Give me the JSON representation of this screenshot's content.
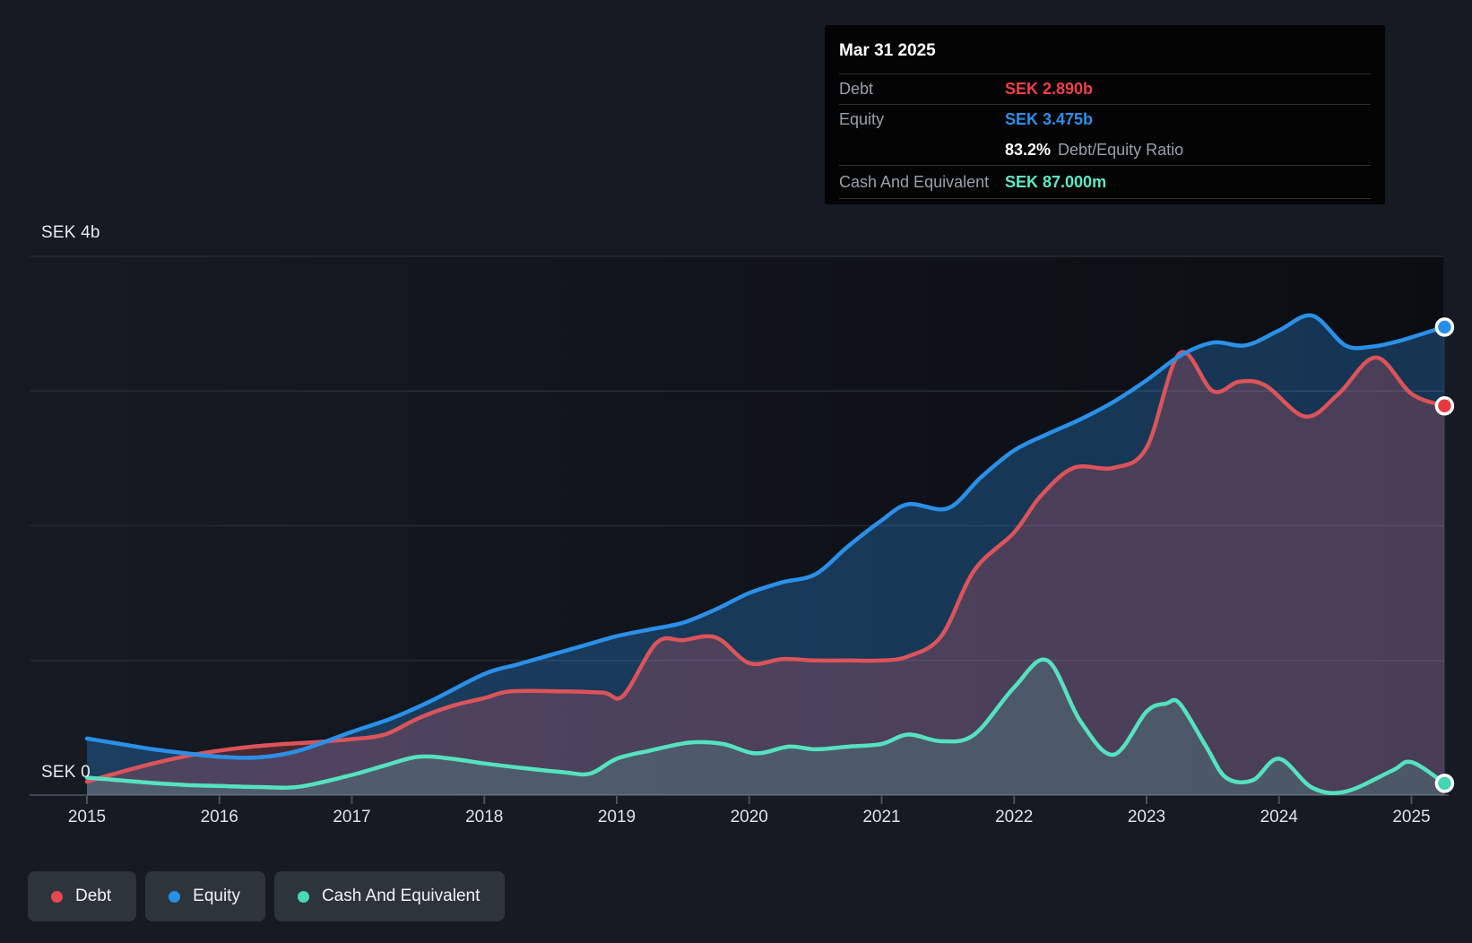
{
  "tooltip": {
    "date": "Mar 31 2025",
    "debt": {
      "label": "Debt",
      "value": "SEK 2.890b",
      "color": "#ef4046"
    },
    "equity": {
      "label": "Equity",
      "value": "SEK 3.475b",
      "color": "#2b90e9"
    },
    "ratio": {
      "value": "83.2%",
      "label": "Debt/Equity Ratio"
    },
    "cash": {
      "label": "Cash And Equivalent",
      "value": "SEK 87.000m",
      "color": "#5ee8c5"
    }
  },
  "y_axis": {
    "top_label": "SEK 4b",
    "bottom_label": "SEK 0"
  },
  "legend": [
    {
      "label": "Debt",
      "color": "#e8474c"
    },
    {
      "label": "Equity",
      "color": "#2590e8"
    },
    {
      "label": "Cash And Equivalent",
      "color": "#49d9b6"
    }
  ],
  "chart_data": {
    "type": "area",
    "x_ticks": [
      "2015",
      "2016",
      "2017",
      "2018",
      "2019",
      "2020",
      "2021",
      "2022",
      "2023",
      "2024",
      "2025"
    ],
    "xlim_years": [
      2015,
      2025.25
    ],
    "ylim_b": [
      0,
      4
    ],
    "grid_step_b": 1,
    "y_unit": "SEK billions",
    "legend_position": "bottom-left",
    "series": [
      {
        "name": "Debt",
        "color": "#dc545a",
        "fill": "rgba(228,88,100,0.26)",
        "marker_color": "#e8393f",
        "points": [
          [
            2015,
            0.1
          ],
          [
            2015.25,
            0.17
          ],
          [
            2015.5,
            0.235
          ],
          [
            2015.75,
            0.29
          ],
          [
            2016,
            0.33
          ],
          [
            2016.25,
            0.36
          ],
          [
            2016.5,
            0.38
          ],
          [
            2016.75,
            0.395
          ],
          [
            2017,
            0.415
          ],
          [
            2017.25,
            0.45
          ],
          [
            2017.5,
            0.57
          ],
          [
            2017.75,
            0.66
          ],
          [
            2018,
            0.72
          ],
          [
            2018.2,
            0.77
          ],
          [
            2018.6,
            0.77
          ],
          [
            2018.9,
            0.76
          ],
          [
            2019.05,
            0.74
          ],
          [
            2019.3,
            1.13
          ],
          [
            2019.5,
            1.15
          ],
          [
            2019.75,
            1.17
          ],
          [
            2020,
            0.98
          ],
          [
            2020.25,
            1.01
          ],
          [
            2020.5,
            1.0
          ],
          [
            2020.75,
            1.0
          ],
          [
            2021,
            1.0
          ],
          [
            2021.2,
            1.03
          ],
          [
            2021.45,
            1.18
          ],
          [
            2021.7,
            1.67
          ],
          [
            2022,
            1.95
          ],
          [
            2022.2,
            2.22
          ],
          [
            2022.45,
            2.43
          ],
          [
            2022.75,
            2.43
          ],
          [
            2023,
            2.58
          ],
          [
            2023.25,
            3.28
          ],
          [
            2023.5,
            3.0
          ],
          [
            2023.7,
            3.07
          ],
          [
            2023.9,
            3.04
          ],
          [
            2024.2,
            2.81
          ],
          [
            2024.45,
            2.98
          ],
          [
            2024.73,
            3.25
          ],
          [
            2025,
            2.98
          ],
          [
            2025.25,
            2.89
          ]
        ]
      },
      {
        "name": "Equity",
        "color": "#2b90e9",
        "fill": "rgba(45,145,235,0.30)",
        "marker_color": "#2590e8",
        "points": [
          [
            2015,
            0.42
          ],
          [
            2015.25,
            0.38
          ],
          [
            2015.5,
            0.34
          ],
          [
            2015.75,
            0.31
          ],
          [
            2016,
            0.285
          ],
          [
            2016.3,
            0.28
          ],
          [
            2016.6,
            0.33
          ],
          [
            2017,
            0.47
          ],
          [
            2017.3,
            0.57
          ],
          [
            2017.6,
            0.7
          ],
          [
            2018,
            0.9
          ],
          [
            2018.25,
            0.97
          ],
          [
            2018.5,
            1.04
          ],
          [
            2018.75,
            1.11
          ],
          [
            2019,
            1.18
          ],
          [
            2019.25,
            1.23
          ],
          [
            2019.5,
            1.28
          ],
          [
            2019.75,
            1.38
          ],
          [
            2020,
            1.5
          ],
          [
            2020.25,
            1.58
          ],
          [
            2020.5,
            1.64
          ],
          [
            2020.75,
            1.85
          ],
          [
            2021,
            2.04
          ],
          [
            2021.2,
            2.16
          ],
          [
            2021.5,
            2.13
          ],
          [
            2021.75,
            2.36
          ],
          [
            2022,
            2.56
          ],
          [
            2022.25,
            2.68
          ],
          [
            2022.5,
            2.79
          ],
          [
            2022.75,
            2.92
          ],
          [
            2023,
            3.08
          ],
          [
            2023.25,
            3.26
          ],
          [
            2023.5,
            3.36
          ],
          [
            2023.75,
            3.34
          ],
          [
            2024,
            3.45
          ],
          [
            2024.25,
            3.56
          ],
          [
            2024.5,
            3.34
          ],
          [
            2024.7,
            3.33
          ],
          [
            2024.9,
            3.37
          ],
          [
            2025.1,
            3.43
          ],
          [
            2025.25,
            3.475
          ]
        ]
      },
      {
        "name": "Cash And Equivalent",
        "color": "#55e2c0",
        "fill": "rgba(85,225,195,0.16)",
        "marker_color": "#43d6b2",
        "points": [
          [
            2015,
            0.13
          ],
          [
            2015.25,
            0.11
          ],
          [
            2015.5,
            0.09
          ],
          [
            2015.75,
            0.075
          ],
          [
            2016,
            0.068
          ],
          [
            2016.3,
            0.06
          ],
          [
            2016.6,
            0.062
          ],
          [
            2017,
            0.15
          ],
          [
            2017.25,
            0.22
          ],
          [
            2017.5,
            0.285
          ],
          [
            2017.75,
            0.27
          ],
          [
            2018,
            0.235
          ],
          [
            2018.3,
            0.2
          ],
          [
            2018.6,
            0.17
          ],
          [
            2018.8,
            0.16
          ],
          [
            2019,
            0.27
          ],
          [
            2019.25,
            0.33
          ],
          [
            2019.55,
            0.39
          ],
          [
            2019.8,
            0.38
          ],
          [
            2020.05,
            0.31
          ],
          [
            2020.3,
            0.36
          ],
          [
            2020.5,
            0.34
          ],
          [
            2020.75,
            0.36
          ],
          [
            2021,
            0.38
          ],
          [
            2021.2,
            0.45
          ],
          [
            2021.45,
            0.4
          ],
          [
            2021.7,
            0.45
          ],
          [
            2022,
            0.8
          ],
          [
            2022.25,
            1.0
          ],
          [
            2022.5,
            0.55
          ],
          [
            2022.75,
            0.3
          ],
          [
            2023,
            0.62
          ],
          [
            2023.15,
            0.68
          ],
          [
            2023.25,
            0.68
          ],
          [
            2023.45,
            0.36
          ],
          [
            2023.6,
            0.13
          ],
          [
            2023.8,
            0.11
          ],
          [
            2024,
            0.27
          ],
          [
            2024.25,
            0.055
          ],
          [
            2024.5,
            0.025
          ],
          [
            2024.85,
            0.18
          ],
          [
            2025,
            0.245
          ],
          [
            2025.25,
            0.087
          ]
        ]
      }
    ]
  }
}
